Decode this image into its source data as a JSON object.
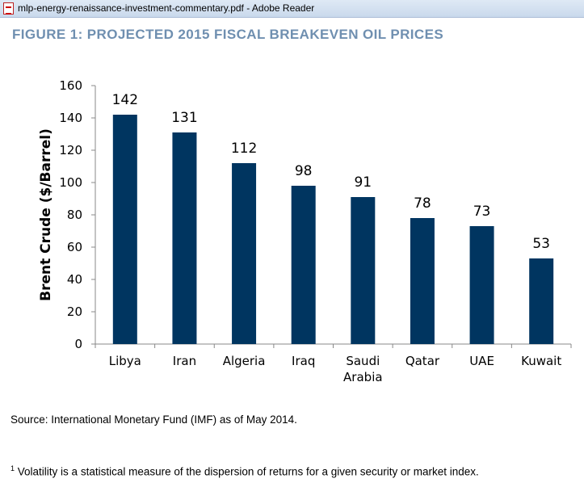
{
  "window": {
    "title": "mlp-energy-renaissance-investment-commentary.pdf - Adobe Reader",
    "icon": "pdf-icon"
  },
  "document": {
    "figure_title": "FIGURE 1: PROJECTED 2015 FISCAL BREAKEVEN OIL PRICES",
    "source": "Source: International Monetary Fund (IMF) as of May 2014.",
    "footnote_marker": "1",
    "footnote": "Volatility is a statistical measure of the dispersion of returns for a given security or market index."
  },
  "colors": {
    "bar": "#003560",
    "title": "#6f8fb0"
  },
  "chart_data": {
    "type": "bar",
    "categories": [
      "Libya",
      "Iran",
      "Algeria",
      "Iraq",
      "Saudi Arabia",
      "Qatar",
      "UAE",
      "Kuwait"
    ],
    "category_lines": [
      [
        "Libya"
      ],
      [
        "Iran"
      ],
      [
        "Algeria"
      ],
      [
        "Iraq"
      ],
      [
        "Saudi",
        "Arabia"
      ],
      [
        "Qatar"
      ],
      [
        "UAE"
      ],
      [
        "Kuwait"
      ]
    ],
    "values": [
      142,
      131,
      112,
      98,
      91,
      78,
      73,
      53
    ],
    "ylabel": "Brent Crude ($/Barrel)",
    "ylim": [
      0,
      160
    ],
    "yticks": [
      0,
      20,
      40,
      60,
      80,
      100,
      120,
      140,
      160
    ],
    "grid": false,
    "data_labels": true
  }
}
